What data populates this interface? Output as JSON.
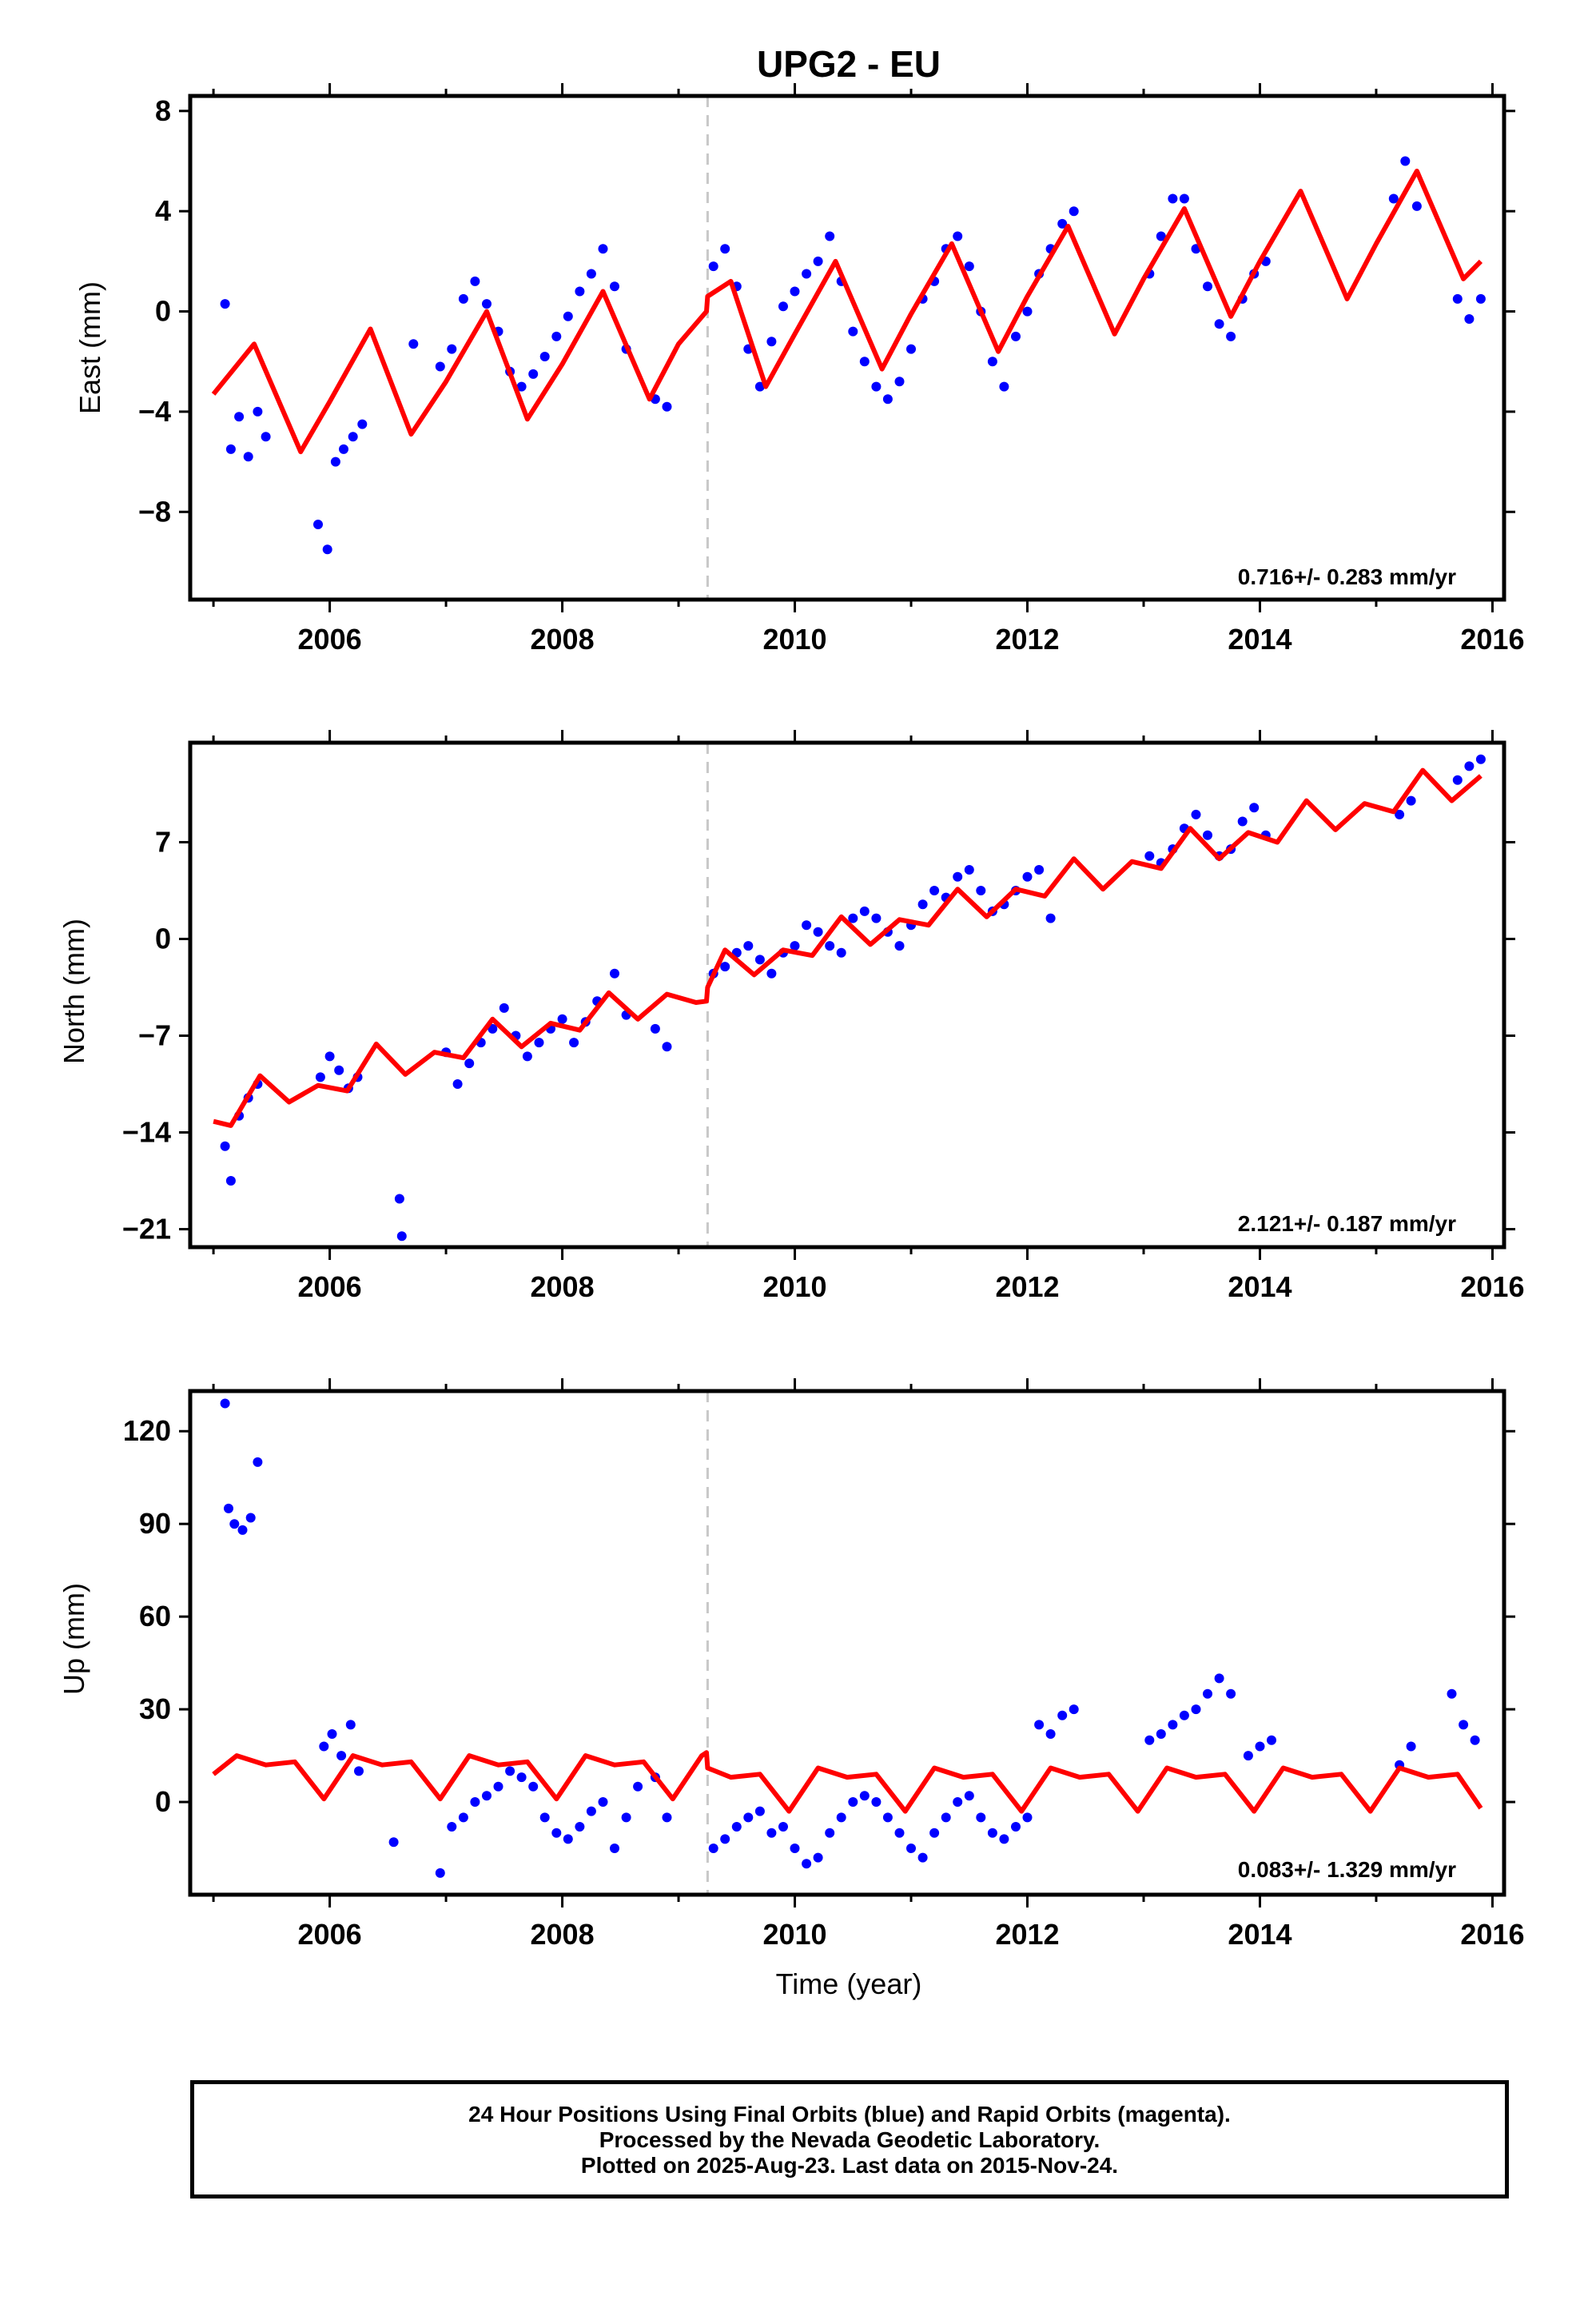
{
  "title": "UPG2 - EU",
  "xlabel": "Time (year)",
  "footer": {
    "line1": "24 Hour Positions Using Final Orbits (blue) and Rapid Orbits (magenta).",
    "line2": "Processed by the Nevada Geodetic Laboratory.",
    "line3": "Plotted on 2025-Aug-23. Last data on 2015-Nov-24."
  },
  "colors": {
    "points": "#0000ff",
    "model": "#ff0000",
    "event_line": "#c8c8c8",
    "frame": "#000000"
  },
  "chart_data": [
    {
      "type": "scatter",
      "panel": "east",
      "ylabel": "East (mm)",
      "rate_text": "0.716+/- 0.283 mm/yr",
      "xlim": [
        2004.8,
        2016.1
      ],
      "ylim": [
        -11.5,
        8.6
      ],
      "xticks": [
        2006,
        2008,
        2010,
        2012,
        2014,
        2016
      ],
      "yticks": [
        -8,
        -4,
        0,
        4,
        8
      ],
      "event_x": 2009.25,
      "grid": false,
      "series": [
        {
          "role": "daily positions",
          "x": [
            2005.1,
            2005.15,
            2005.22,
            2005.3,
            2005.38,
            2005.45,
            2005.9,
            2005.98,
            2006.05,
            2006.12,
            2006.2,
            2006.28,
            2006.72,
            2006.95,
            2007.05,
            2007.15,
            2007.25,
            2007.35,
            2007.45,
            2007.55,
            2007.65,
            2007.75,
            2007.85,
            2007.95,
            2008.05,
            2008.15,
            2008.25,
            2008.35,
            2008.45,
            2008.55,
            2008.8,
            2008.9,
            2009.3,
            2009.4,
            2009.5,
            2009.6,
            2009.7,
            2009.8,
            2009.9,
            2010.0,
            2010.1,
            2010.2,
            2010.3,
            2010.4,
            2010.5,
            2010.6,
            2010.7,
            2010.8,
            2010.9,
            2011.0,
            2011.1,
            2011.2,
            2011.3,
            2011.4,
            2011.5,
            2011.6,
            2011.7,
            2011.8,
            2011.9,
            2012.0,
            2012.1,
            2012.2,
            2012.3,
            2012.4,
            2013.05,
            2013.15,
            2013.25,
            2013.35,
            2013.45,
            2013.55,
            2013.65,
            2013.75,
            2013.85,
            2013.95,
            2014.05,
            2015.15,
            2015.25,
            2015.35,
            2015.7,
            2015.8,
            2015.9
          ],
          "y": [
            0.3,
            -5.5,
            -4.2,
            -5.8,
            -4.0,
            -5.0,
            -8.5,
            -9.5,
            -6.0,
            -5.5,
            -5.0,
            -4.5,
            -1.3,
            -2.2,
            -1.5,
            0.5,
            1.2,
            0.3,
            -0.8,
            -2.4,
            -3.0,
            -2.5,
            -1.8,
            -1.0,
            -0.2,
            0.8,
            1.5,
            2.5,
            1.0,
            -1.5,
            -3.5,
            -3.8,
            1.8,
            2.5,
            1.0,
            -1.5,
            -3.0,
            -1.2,
            0.2,
            0.8,
            1.5,
            2.0,
            3.0,
            1.2,
            -0.8,
            -2.0,
            -3.0,
            -3.5,
            -2.8,
            -1.5,
            0.5,
            1.2,
            2.5,
            3.0,
            1.8,
            0.0,
            -2.0,
            -3.0,
            -1.0,
            0.0,
            1.5,
            2.5,
            3.5,
            4.0,
            1.5,
            3.0,
            4.5,
            4.5,
            2.5,
            1.0,
            -0.5,
            -1.0,
            0.5,
            1.5,
            2.0,
            4.5,
            6.0,
            4.2,
            0.5,
            -0.3,
            0.5
          ]
        },
        {
          "role": "model fit",
          "x": [
            2005.0,
            2005.35,
            2005.75,
            2006.0,
            2006.35,
            2006.7,
            2007.0,
            2007.35,
            2007.7,
            2008.0,
            2008.35,
            2008.75,
            2009.0,
            2009.24,
            2009.25,
            2009.45,
            2009.75,
            2010.0,
            2010.35,
            2010.75,
            2011.0,
            2011.35,
            2011.75,
            2012.0,
            2012.35,
            2012.75,
            2013.0,
            2013.35,
            2013.75,
            2014.0,
            2014.35,
            2014.75,
            2015.0,
            2015.35,
            2015.75,
            2015.9
          ],
          "y": [
            -3.3,
            -1.3,
            -5.6,
            -3.6,
            -0.7,
            -4.9,
            -2.8,
            0.0,
            -4.3,
            -2.1,
            0.8,
            -3.5,
            -1.3,
            0.0,
            0.6,
            1.2,
            -3.0,
            -0.9,
            2.0,
            -2.3,
            -0.1,
            2.7,
            -1.6,
            0.6,
            3.4,
            -0.9,
            1.3,
            4.1,
            -0.2,
            2.0,
            4.8,
            0.5,
            2.7,
            5.6,
            1.3,
            2.0
          ]
        }
      ]
    },
    {
      "type": "scatter",
      "panel": "north",
      "ylabel": "North (mm)",
      "rate_text": "2.121+/- 0.187 mm/yr",
      "xlim": [
        2004.8,
        2016.1
      ],
      "ylim": [
        -22.3,
        14.2
      ],
      "xticks": [
        2006,
        2008,
        2010,
        2012,
        2014,
        2016
      ],
      "yticks": [
        -21,
        -14,
        -7,
        0,
        7
      ],
      "event_x": 2009.25,
      "grid": false,
      "series": [
        {
          "role": "daily positions",
          "x": [
            2005.1,
            2005.15,
            2005.22,
            2005.3,
            2005.38,
            2005.92,
            2006.0,
            2006.08,
            2006.16,
            2006.24,
            2006.6,
            2006.62,
            2007.0,
            2007.1,
            2007.2,
            2007.3,
            2007.4,
            2007.5,
            2007.6,
            2007.7,
            2007.8,
            2007.9,
            2008.0,
            2008.1,
            2008.2,
            2008.3,
            2008.45,
            2008.55,
            2008.8,
            2008.9,
            2009.3,
            2009.4,
            2009.5,
            2009.6,
            2009.7,
            2009.8,
            2009.9,
            2010.0,
            2010.1,
            2010.2,
            2010.3,
            2010.4,
            2010.5,
            2010.6,
            2010.7,
            2010.8,
            2010.9,
            2011.0,
            2011.1,
            2011.2,
            2011.3,
            2011.4,
            2011.5,
            2011.6,
            2011.7,
            2011.8,
            2011.9,
            2012.0,
            2012.1,
            2012.2,
            2013.05,
            2013.15,
            2013.25,
            2013.35,
            2013.45,
            2013.55,
            2013.65,
            2013.75,
            2013.85,
            2013.95,
            2014.05,
            2015.2,
            2015.3,
            2015.7,
            2015.8,
            2015.9
          ],
          "y": [
            -15.0,
            -17.5,
            -12.8,
            -11.5,
            -10.5,
            -10.0,
            -8.5,
            -9.5,
            -10.8,
            -10.0,
            -18.8,
            -21.5,
            -8.2,
            -10.5,
            -9.0,
            -7.5,
            -6.5,
            -5.0,
            -7.0,
            -8.5,
            -7.5,
            -6.5,
            -5.8,
            -7.5,
            -6.0,
            -4.5,
            -2.5,
            -5.5,
            -6.5,
            -7.8,
            -2.5,
            -2.0,
            -1.0,
            -0.5,
            -1.5,
            -2.5,
            -1.0,
            -0.5,
            1.0,
            0.5,
            -0.5,
            -1.0,
            1.5,
            2.0,
            1.5,
            0.5,
            -0.5,
            1.0,
            2.5,
            3.5,
            3.0,
            4.5,
            5.0,
            3.5,
            2.0,
            2.5,
            3.5,
            4.5,
            5.0,
            1.5,
            6.0,
            5.5,
            6.5,
            8.0,
            9.0,
            7.5,
            6.0,
            6.5,
            8.5,
            9.5,
            7.5,
            9.0,
            10.0,
            11.5,
            12.5,
            13.0
          ]
        },
        {
          "role": "model fit",
          "x": [
            2005.0,
            2005.15,
            2005.4,
            2005.65,
            2005.9,
            2006.15,
            2006.4,
            2006.65,
            2006.9,
            2007.15,
            2007.4,
            2007.65,
            2007.9,
            2008.15,
            2008.4,
            2008.65,
            2008.9,
            2009.15,
            2009.24,
            2009.25,
            2009.4,
            2009.65,
            2009.9,
            2010.15,
            2010.4,
            2010.65,
            2010.9,
            2011.15,
            2011.4,
            2011.65,
            2011.9,
            2012.15,
            2012.4,
            2012.65,
            2012.9,
            2013.15,
            2013.4,
            2013.65,
            2013.9,
            2014.15,
            2014.4,
            2014.65,
            2014.9,
            2015.15,
            2015.4,
            2015.65,
            2015.9
          ],
          "y": [
            -13.2,
            -13.5,
            -9.9,
            -11.8,
            -10.6,
            -11.0,
            -7.6,
            -9.8,
            -8.2,
            -8.6,
            -5.8,
            -7.8,
            -6.1,
            -6.6,
            -3.9,
            -5.8,
            -4.0,
            -4.6,
            -4.5,
            -3.5,
            -0.8,
            -2.6,
            -0.8,
            -1.2,
            1.6,
            -0.4,
            1.4,
            1.0,
            3.6,
            1.6,
            3.6,
            3.1,
            5.8,
            3.6,
            5.6,
            5.1,
            8.0,
            5.8,
            7.7,
            7.0,
            10.0,
            7.9,
            9.8,
            9.2,
            12.2,
            10.0,
            11.8
          ]
        }
      ]
    },
    {
      "type": "scatter",
      "panel": "up",
      "ylabel": "Up (mm)",
      "rate_text": "0.083+/- 1.329 mm/yr",
      "xlim": [
        2004.8,
        2016.1
      ],
      "ylim": [
        -30,
        133
      ],
      "xticks": [
        2006,
        2008,
        2010,
        2012,
        2014,
        2016
      ],
      "yticks": [
        0,
        30,
        60,
        90,
        120
      ],
      "event_x": 2009.25,
      "grid": false,
      "series": [
        {
          "role": "daily positions",
          "x": [
            2005.1,
            2005.13,
            2005.18,
            2005.25,
            2005.32,
            2005.38,
            2005.95,
            2006.02,
            2006.1,
            2006.18,
            2006.25,
            2006.55,
            2006.95,
            2007.05,
            2007.15,
            2007.25,
            2007.35,
            2007.45,
            2007.55,
            2007.65,
            2007.75,
            2007.85,
            2007.95,
            2008.05,
            2008.15,
            2008.25,
            2008.35,
            2008.45,
            2008.55,
            2008.65,
            2008.8,
            2008.9,
            2009.3,
            2009.4,
            2009.5,
            2009.6,
            2009.7,
            2009.8,
            2009.9,
            2010.0,
            2010.1,
            2010.2,
            2010.3,
            2010.4,
            2010.5,
            2010.6,
            2010.7,
            2010.8,
            2010.9,
            2011.0,
            2011.1,
            2011.2,
            2011.3,
            2011.4,
            2011.5,
            2011.6,
            2011.7,
            2011.8,
            2011.9,
            2012.0,
            2012.1,
            2012.2,
            2012.3,
            2012.4,
            2013.05,
            2013.15,
            2013.25,
            2013.35,
            2013.45,
            2013.55,
            2013.65,
            2013.75,
            2013.9,
            2014.0,
            2014.1,
            2015.2,
            2015.3,
            2015.65,
            2015.75,
            2015.85
          ],
          "y": [
            129,
            95,
            90,
            88,
            92,
            110,
            18,
            22,
            15,
            25,
            10,
            -13,
            -23,
            -8,
            -5,
            0,
            2,
            5,
            10,
            8,
            5,
            -5,
            -10,
            -12,
            -8,
            -3,
            0,
            -15,
            -5,
            5,
            8,
            -5,
            -15,
            -12,
            -8,
            -5,
            -3,
            -10,
            -8,
            -15,
            -20,
            -18,
            -10,
            -5,
            0,
            2,
            0,
            -5,
            -10,
            -15,
            -18,
            -10,
            -5,
            0,
            2,
            -5,
            -10,
            -12,
            -8,
            -5,
            25,
            22,
            28,
            30,
            20,
            22,
            25,
            28,
            30,
            35,
            40,
            35,
            15,
            18,
            20,
            12,
            18,
            35,
            25,
            20
          ]
        },
        {
          "role": "model fit",
          "x": [
            2005.0,
            2005.2,
            2005.45,
            2005.7,
            2005.95,
            2006.2,
            2006.45,
            2006.7,
            2006.95,
            2007.2,
            2007.45,
            2007.7,
            2007.95,
            2008.2,
            2008.45,
            2008.7,
            2008.95,
            2009.2,
            2009.24,
            2009.25,
            2009.45,
            2009.7,
            2009.95,
            2010.2,
            2010.45,
            2010.7,
            2010.95,
            2011.2,
            2011.45,
            2011.7,
            2011.95,
            2012.2,
            2012.45,
            2012.7,
            2012.95,
            2013.2,
            2013.45,
            2013.7,
            2013.95,
            2014.2,
            2014.45,
            2014.7,
            2014.95,
            2015.2,
            2015.45,
            2015.7,
            2015.9
          ],
          "y": [
            9,
            15,
            12,
            13,
            1,
            15,
            12,
            13,
            1,
            15,
            12,
            13,
            1,
            15,
            12,
            13,
            1,
            15,
            16,
            11,
            8,
            9,
            -3,
            11,
            8,
            9,
            -3,
            11,
            8,
            9,
            -3,
            11,
            8,
            9,
            -3,
            11,
            8,
            9,
            -3,
            11,
            8,
            9,
            -3,
            11,
            8,
            9,
            -2
          ]
        }
      ]
    }
  ]
}
